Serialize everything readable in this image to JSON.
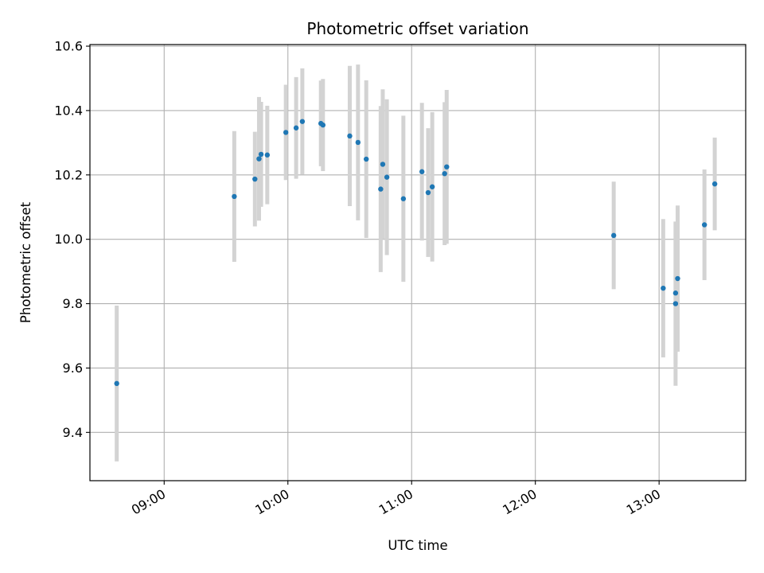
{
  "chart_data": {
    "type": "scatter",
    "title": "Photometric offset variation",
    "xlabel": "UTC time",
    "ylabel": "Photometric offset",
    "xlim": [
      "08:24",
      "13:42"
    ],
    "ylim": [
      9.25,
      10.605
    ],
    "xticks": [
      "09:00",
      "10:00",
      "11:00",
      "12:00",
      "13:00"
    ],
    "yticks": [
      9.4,
      9.6,
      9.8,
      10.0,
      10.2,
      10.4,
      10.6
    ],
    "ytick_labels": [
      "9.4",
      "9.6",
      "9.8",
      "10.0",
      "10.2",
      "10.4",
      "10.6"
    ],
    "grid": true,
    "marker_color": "#1f77b4",
    "errorbar_color": "#d3d3d3",
    "series": [
      {
        "points": [
          {
            "t": "08:37",
            "y": 9.552,
            "err": 0.242
          },
          {
            "t": "09:34",
            "y": 10.133,
            "err": 0.203
          },
          {
            "t": "09:44",
            "y": 10.187,
            "err": 0.147
          },
          {
            "t": "09:46",
            "y": 10.25,
            "err": 0.192
          },
          {
            "t": "09:47",
            "y": 10.264,
            "err": 0.163
          },
          {
            "t": "09:50",
            "y": 10.262,
            "err": 0.153
          },
          {
            "t": "09:59",
            "y": 10.332,
            "err": 0.148
          },
          {
            "t": "10:04",
            "y": 10.346,
            "err": 0.158
          },
          {
            "t": "10:07",
            "y": 10.366,
            "err": 0.165
          },
          {
            "t": "10:16",
            "y": 10.36,
            "err": 0.133
          },
          {
            "t": "10:17",
            "y": 10.355,
            "err": 0.143
          },
          {
            "t": "10:30",
            "y": 10.321,
            "err": 0.218
          },
          {
            "t": "10:34",
            "y": 10.301,
            "err": 0.242
          },
          {
            "t": "10:38",
            "y": 10.249,
            "err": 0.245
          },
          {
            "t": "10:45",
            "y": 10.156,
            "err": 0.258
          },
          {
            "t": "10:46",
            "y": 10.233,
            "err": 0.233
          },
          {
            "t": "10:48",
            "y": 10.193,
            "err": 0.242
          },
          {
            "t": "10:56",
            "y": 10.126,
            "err": 0.258
          },
          {
            "t": "11:05",
            "y": 10.21,
            "err": 0.214
          },
          {
            "t": "11:08",
            "y": 10.145,
            "err": 0.2
          },
          {
            "t": "11:10",
            "y": 10.163,
            "err": 0.232
          },
          {
            "t": "11:16",
            "y": 10.204,
            "err": 0.222
          },
          {
            "t": "11:17",
            "y": 10.225,
            "err": 0.239
          },
          {
            "t": "12:38",
            "y": 10.012,
            "err": 0.167
          },
          {
            "t": "13:02",
            "y": 9.848,
            "err": 0.215
          },
          {
            "t": "13:08",
            "y": 9.8,
            "err": 0.255
          },
          {
            "t": "13:08",
            "y": 9.833,
            "err": 0.22
          },
          {
            "t": "13:09",
            "y": 9.878,
            "err": 0.227
          },
          {
            "t": "13:22",
            "y": 10.045,
            "err": 0.172
          },
          {
            "t": "13:27",
            "y": 10.172,
            "err": 0.144
          }
        ]
      }
    ]
  }
}
